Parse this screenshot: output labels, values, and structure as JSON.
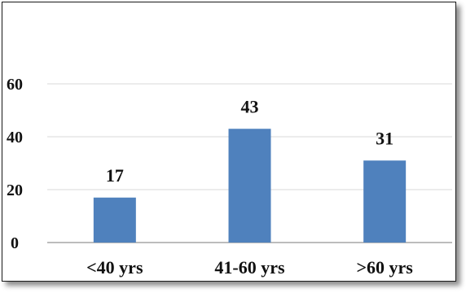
{
  "chart_data": {
    "type": "bar",
    "categories": [
      "<40 yrs",
      "41-60 yrs",
      ">60 yrs"
    ],
    "values": [
      17,
      43,
      31
    ],
    "data_labels": [
      "17",
      "43",
      "31"
    ],
    "title": "",
    "xlabel": "",
    "ylabel": "",
    "ylim": [
      0,
      60
    ],
    "yticks": [
      "0",
      "20",
      "40",
      "60"
    ],
    "grid": "horizontal",
    "legend": "none",
    "bar_color": "#4f81bd",
    "grid_color": "#d9d9d9",
    "axis_color": "#a6a6a6"
  }
}
